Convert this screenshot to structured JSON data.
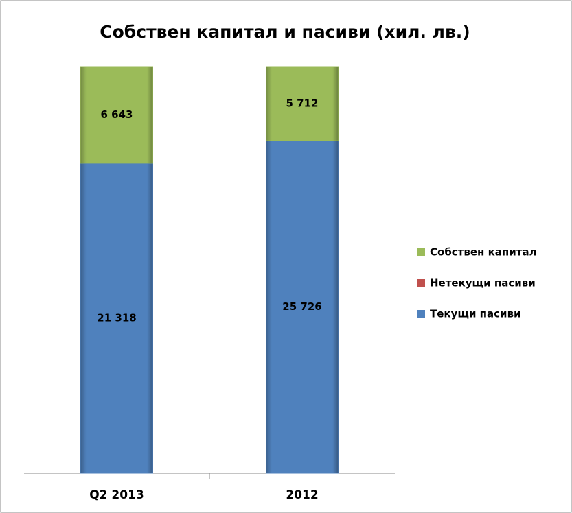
{
  "chart_data": {
    "type": "bar",
    "stacked": "percent",
    "title": "Собствен капитал и пасиви (хил. лв.)",
    "categories": [
      "Q2 2013",
      "2012"
    ],
    "series": [
      {
        "name": "Текущи пасиви",
        "color": "#4f81bd",
        "values": [
          21318,
          25726
        ],
        "value_labels": [
          "21 318",
          "25 726"
        ]
      },
      {
        "name": "Нетекущи пасиви",
        "color": "#c0504d",
        "values": [
          0,
          0
        ]
      },
      {
        "name": "Собствен капитал",
        "color": "#9bbb59",
        "values": [
          6643,
          5712
        ],
        "value_labels": [
          "6 643",
          "5 712"
        ]
      }
    ],
    "legend": "right"
  }
}
